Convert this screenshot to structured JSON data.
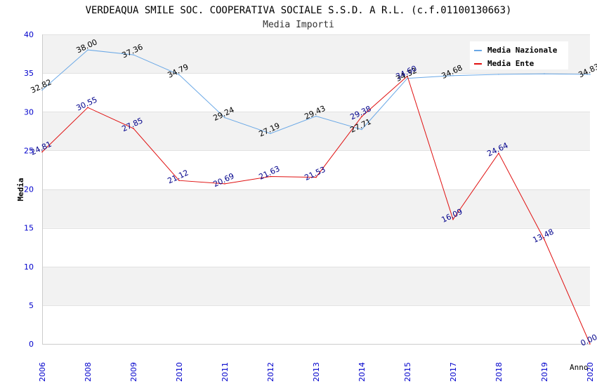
{
  "chart_data": {
    "type": "line",
    "title": "VERDEAQUA SMILE SOC. COOPERATIVA SOCIALE S.S.D. A R.L. (c.f.01100130663)",
    "subtitle": "Media Importi",
    "xlabel": "Anno",
    "ylabel": "Media",
    "ylim": [
      0,
      40
    ],
    "yticks": [
      "0",
      "5",
      "10",
      "15",
      "20",
      "25",
      "30",
      "35",
      "40"
    ],
    "categories": [
      "2006",
      "2008",
      "2009",
      "2010",
      "2011",
      "2012",
      "2013",
      "2014",
      "2015",
      "2017",
      "2018",
      "2019",
      "2020"
    ],
    "legend_position": "top-right",
    "series": [
      {
        "name": "Media Nazionale",
        "color": "#6aa8e6",
        "label_color": "#000000",
        "values": [
          32.82,
          38.0,
          37.36,
          34.79,
          29.24,
          27.19,
          29.43,
          27.71,
          34.32,
          34.68,
          34.83,
          34.9,
          34.83
        ],
        "labels": [
          "32.82",
          "38.00",
          "37.36",
          "34.79",
          "29.24",
          "27.19",
          "29.43",
          "27.71",
          "34.32",
          "34.68",
          "",
          "",
          "34.83"
        ]
      },
      {
        "name": "Media Ente",
        "color": "#e01010",
        "label_color": "#00008b",
        "values": [
          24.81,
          30.55,
          27.85,
          21.12,
          20.69,
          21.63,
          21.53,
          29.38,
          34.6,
          16.09,
          24.64,
          13.48,
          0.0
        ],
        "labels": [
          "24.81",
          "30.55",
          "27.85",
          "21.12",
          "20.69",
          "21.63",
          "21.53",
          "29.38",
          "34.60",
          "16.09",
          "24.64",
          "13.48",
          "0.00"
        ]
      }
    ]
  }
}
